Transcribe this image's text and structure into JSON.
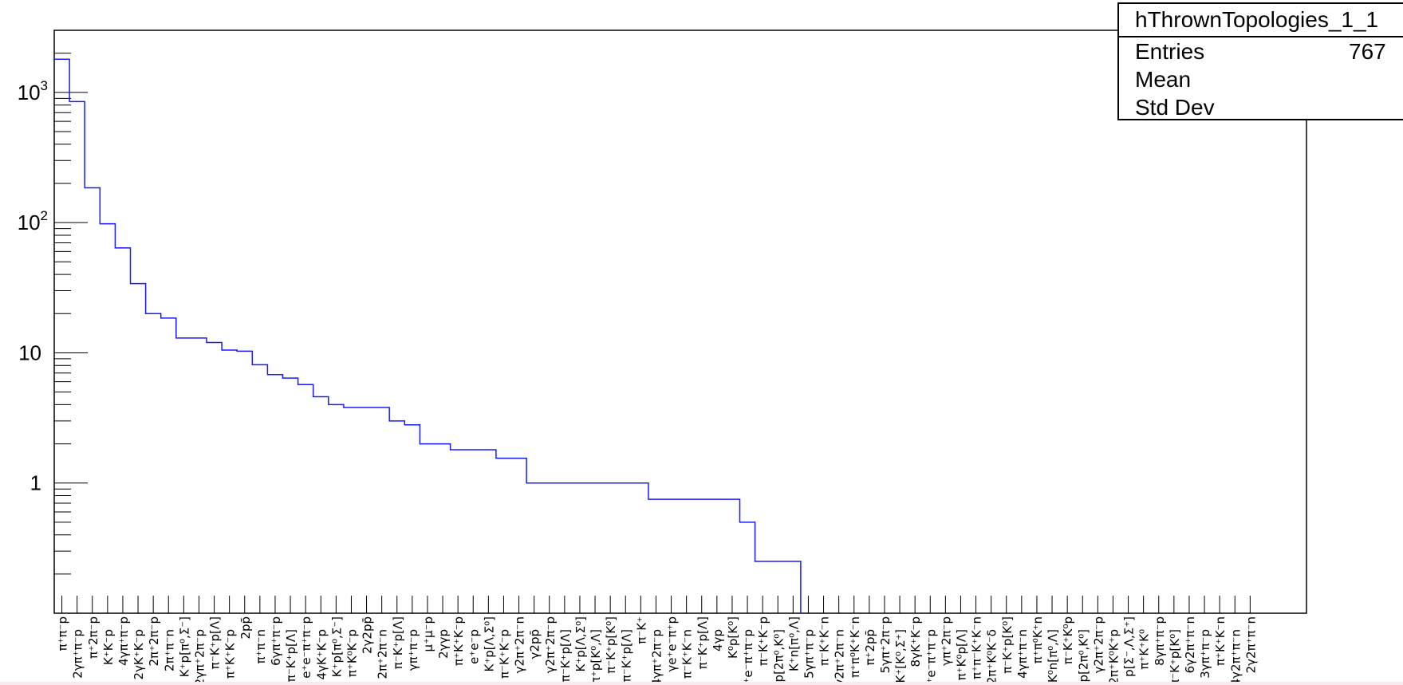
{
  "stats": {
    "title": "hThrownTopologies_1_1",
    "rows": [
      {
        "label": "Entries",
        "value": "767"
      },
      {
        "label": "Mean",
        "value": ""
      },
      {
        "label": "Std Dev",
        "value": ""
      }
    ]
  },
  "colors": {
    "line": "#1a1aff",
    "frame": "#000000",
    "background": "#ffffff"
  },
  "chart_data": {
    "type": "histogram-step",
    "title": "hThrownTopologies_1_1",
    "yscale": "log",
    "ylim": [
      0.1,
      3000
    ],
    "ytick_labels": [
      {
        "value": 1000,
        "base": "10",
        "exp": "3"
      },
      {
        "value": 100,
        "base": "10",
        "exp": "2"
      },
      {
        "value": 10,
        "base": "10",
        "exp": ""
      },
      {
        "value": 1,
        "base": "1",
        "exp": ""
      }
    ],
    "categories": [
      "π⁺π⁻p",
      "2γπ⁺π⁻p",
      "π⁺2π⁻p",
      "K⁺K⁻p",
      "4γπ⁺π⁻p",
      "2γK⁺K⁻p",
      "2π⁺2π⁻p",
      "2π⁺π⁻n",
      "K⁺p[π⁰,Σ⁻]",
      "2γπ⁺2π⁻p",
      "π⁻K⁺p[Λ]",
      "π⁺K⁺K⁻p",
      "2pp̄",
      "π⁺π⁻n",
      "6γπ⁺π⁻p",
      "π⁻K⁺p[Λ]",
      "e⁺e⁻π⁺π⁻p",
      "4γK⁺K⁻p",
      "K⁺p[π⁰,Σ⁻]",
      "π⁺K⁰K⁻p",
      "2γ2pp̄",
      "2π⁺2π⁻n",
      "π⁻K⁺p[Λ]",
      "γπ⁺π⁻p",
      "μ⁺μ⁻p",
      "2γγp",
      "π⁺K⁺K⁻p",
      "e⁺e⁻p",
      "K⁺p[Λ,Σ⁰]",
      "π⁻K⁺K⁻p",
      "γ2π⁺2π⁻n",
      "γ2pp̄",
      "γ2π⁺2π⁻p",
      "π⁻K⁺p[Λ]",
      "K⁺p[Λ,Σ⁰]",
      "π⁺p[K⁰,Λ]",
      "π⁻K⁺p[K⁰]",
      "π⁻K⁺p[Λ]",
      "π⁻K⁺",
      "4γπ⁺2π⁻p",
      "γe⁺e⁻π⁺p",
      "π⁻K⁺K⁻n",
      "π⁻K⁺p[Λ]",
      "4γp",
      "K⁰p[K⁰]",
      "e⁺e⁻π⁺π⁻p",
      "π⁻K⁺K⁻p",
      "p[2π⁰,K⁰]",
      "K⁺n[π⁰,Λ]",
      "5γπ⁺π⁻p",
      "π⁻K⁺K⁻n",
      "γ2π⁺2π⁻n",
      "π⁺π⁰K⁺K⁻n",
      "π⁺2pp̄",
      "5γπ⁺2π⁻p",
      "π⁰K⁺[K⁰,Σ⁺]",
      "8γK⁺K⁻p",
      "e⁺e⁻π⁺π⁻p",
      "γπ⁺2π⁻p",
      "π⁺K⁰p[Λ]",
      "π⁺π⁻K⁺K⁻n",
      "2π⁺K⁰K⁻δ",
      "π⁻K⁺p[K⁰]",
      "4γπ⁺π⁻n",
      "π⁺π⁰K⁺n",
      "K⁰n[π⁰,Λ]",
      "π⁻K⁺K⁰p",
      "p[2π⁰,K⁰]",
      "γ2π⁺2π⁻p",
      "2π⁺K⁰K⁺p",
      "p[Σ⁻,Λ,Σ⁺]",
      "π⁺K⁺K⁰",
      "8γπ⁺π⁻p",
      "π⁻K⁺p[K⁰]",
      "6γ2π⁺π⁻n",
      "3γπ⁺π⁻p",
      "π⁺K⁺K⁻n",
      "4γ2π⁺π⁻n",
      "2γ2π⁺π⁻n"
    ],
    "values": [
      1800,
      850,
      185,
      98,
      64,
      34,
      20,
      18.5,
      13,
      13,
      12,
      10.5,
      10.3,
      8.1,
      6.8,
      6.4,
      5.7,
      4.6,
      4,
      3.8,
      3.8,
      3.8,
      3,
      2.8,
      2,
      2,
      1.8,
      1.8,
      1.8,
      1.55,
      1.55,
      1,
      1,
      1,
      1,
      1,
      1,
      1,
      1,
      0.75,
      0.75,
      0.75,
      0.75,
      0.75,
      0.75,
      0.5,
      0.25,
      0.25,
      0.25,
      0,
      0,
      0,
      0,
      0,
      0,
      0,
      0,
      0,
      0,
      0,
      0,
      0,
      0,
      0,
      0,
      0,
      0,
      0,
      0,
      0,
      0,
      0,
      0,
      0,
      0,
      0,
      0,
      0,
      0
    ],
    "grid": false,
    "legend": "top-right"
  }
}
